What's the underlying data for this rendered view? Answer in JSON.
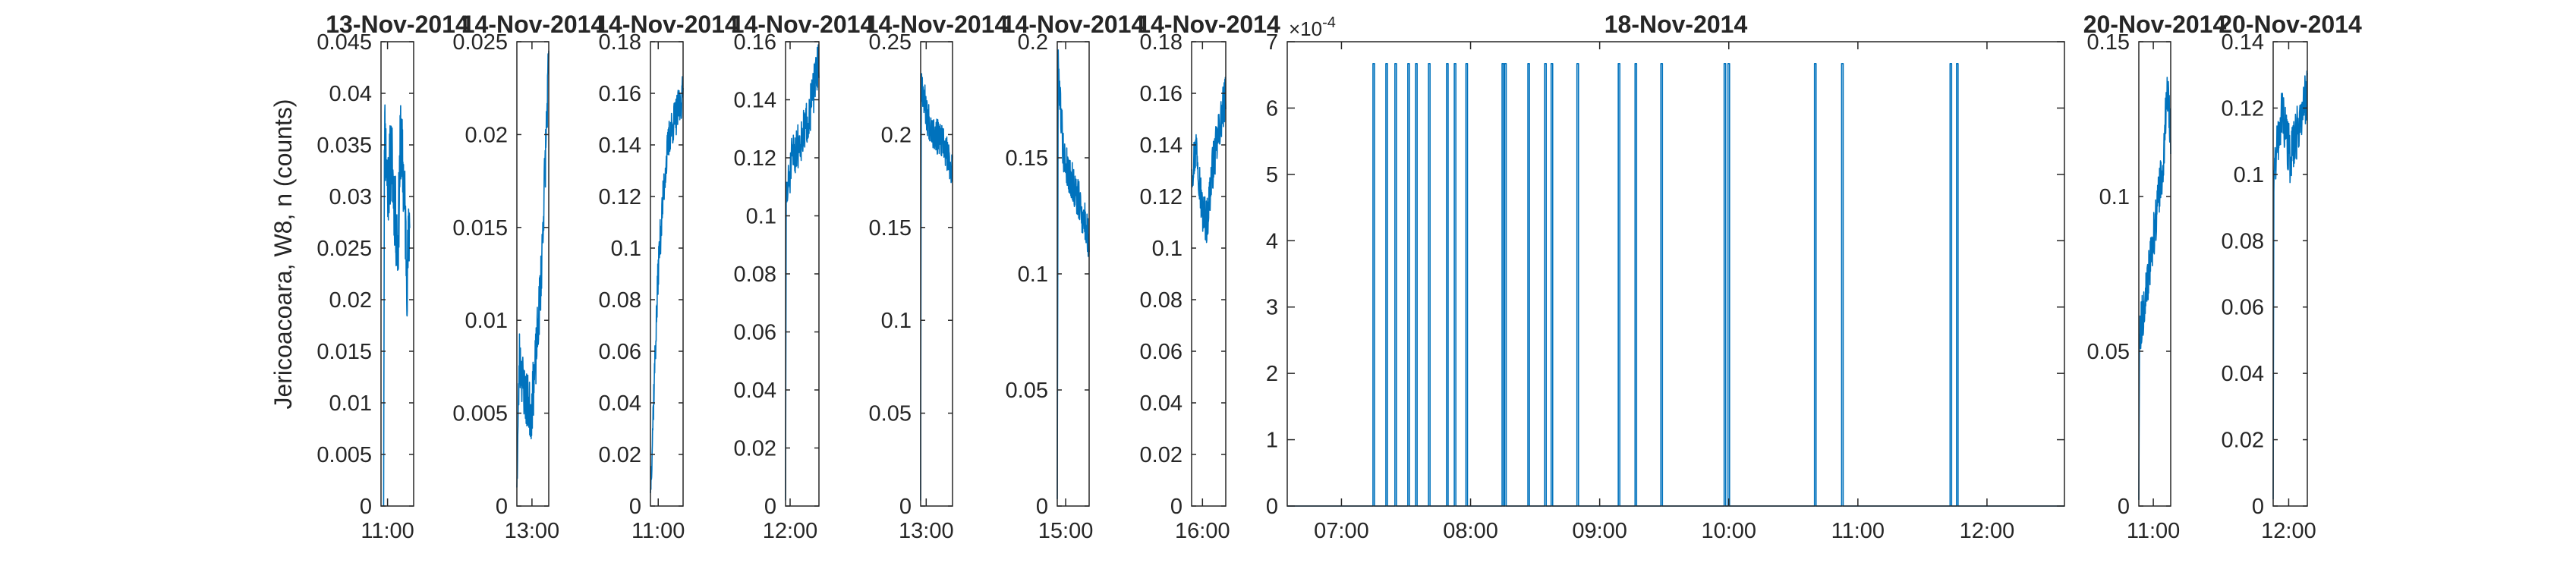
{
  "chart_data": {
    "type": "line",
    "ylabel": "Jericoacoara, W8, n (counts)",
    "line_color": "#0072BD",
    "axes_color": "#262626",
    "panels": [
      {
        "title": "13-Nov-2014",
        "ylim": [
          0,
          0.045
        ],
        "yticks": [
          "0",
          "0.005",
          "0.01",
          "0.015",
          "0.02",
          "0.025",
          "0.03",
          "0.035",
          "0.04",
          "0.045"
        ],
        "xlim": [
          10.95,
          11.2
        ],
        "xticks": [
          {
            "value": 11.0,
            "label": "11:00"
          }
        ],
        "trace": {
          "t0": 10.97,
          "t1": 11.17,
          "seed": 11,
          "points": [
            [
              0,
              0
            ],
            [
              0.03,
              0.037
            ],
            [
              0.15,
              0.031
            ],
            [
              0.3,
              0.034
            ],
            [
              0.45,
              0.028
            ],
            [
              0.55,
              0.025
            ],
            [
              0.65,
              0.036
            ],
            [
              0.8,
              0.03
            ],
            [
              0.9,
              0.022
            ],
            [
              1,
              0.028
            ]
          ],
          "noise": 0.0042
        }
      },
      {
        "title": "14-Nov-2014",
        "ylim": [
          0,
          0.025
        ],
        "yticks": [
          "0",
          "0.005",
          "0.01",
          "0.015",
          "0.02",
          "0.025"
        ],
        "xlim": [
          12.55,
          13.5
        ],
        "xticks": [
          {
            "value": 13.0,
            "label": "13:00"
          }
        ],
        "trace": {
          "t0": 12.55,
          "t1": 13.5,
          "seed": 23,
          "points": [
            [
              0,
              0.001
            ],
            [
              0.08,
              0.008
            ],
            [
              0.25,
              0.006
            ],
            [
              0.45,
              0.005
            ],
            [
              0.6,
              0.008
            ],
            [
              0.75,
              0.012
            ],
            [
              0.88,
              0.018
            ],
            [
              1,
              0.024
            ]
          ],
          "noise": 0.0016
        }
      },
      {
        "title": "14-Nov-2014",
        "ylim": [
          0,
          0.18
        ],
        "yticks": [
          "0",
          "0.02",
          "0.04",
          "0.06",
          "0.08",
          "0.1",
          "0.12",
          "0.14",
          "0.16",
          "0.18"
        ],
        "xlim": [
          10.75,
          11.8
        ],
        "xticks": [
          {
            "value": 11.0,
            "label": "11:00"
          }
        ],
        "trace": {
          "t0": 10.75,
          "t1": 11.8,
          "seed": 37,
          "points": [
            [
              0,
              0.005
            ],
            [
              0.12,
              0.05
            ],
            [
              0.25,
              0.095
            ],
            [
              0.45,
              0.13
            ],
            [
              0.6,
              0.145
            ],
            [
              0.75,
              0.15
            ],
            [
              0.9,
              0.155
            ],
            [
              1,
              0.16
            ]
          ],
          "noise": 0.008
        }
      },
      {
        "title": "14-Nov-2014",
        "ylim": [
          0,
          0.16
        ],
        "yticks": [
          "0",
          "0.02",
          "0.04",
          "0.06",
          "0.08",
          "0.1",
          "0.12",
          "0.14",
          "0.16"
        ],
        "xlim": [
          11.85,
          12.95
        ],
        "xticks": [
          {
            "value": 12.0,
            "label": "12:00"
          }
        ],
        "trace": {
          "t0": 11.85,
          "t1": 12.95,
          "seed": 51,
          "points": [
            [
              0,
              0.002
            ],
            [
              0.02,
              0.105
            ],
            [
              0.2,
              0.12
            ],
            [
              0.4,
              0.125
            ],
            [
              0.6,
              0.13
            ],
            [
              0.8,
              0.14
            ],
            [
              1,
              0.155
            ]
          ],
          "noise": 0.008
        }
      },
      {
        "title": "14-Nov-2014",
        "ylim": [
          0,
          0.25
        ],
        "yticks": [
          "0",
          "0.05",
          "0.1",
          "0.15",
          "0.2",
          "0.25"
        ],
        "xlim": [
          12.8,
          13.95
        ],
        "xticks": [
          {
            "value": 13.0,
            "label": "13:00"
          }
        ],
        "trace": {
          "t0": 12.8,
          "t1": 13.95,
          "seed": 67,
          "points": [
            [
              0,
              0.003
            ],
            [
              0.02,
              0.23
            ],
            [
              0.2,
              0.21
            ],
            [
              0.45,
              0.2
            ],
            [
              0.7,
              0.195
            ],
            [
              1,
              0.18
            ]
          ],
          "noise": 0.01
        }
      },
      {
        "title": "14-Nov-2014",
        "ylim": [
          0,
          0.2
        ],
        "yticks": [
          "0",
          "0.05",
          "0.1",
          "0.15",
          "0.2"
        ],
        "xlim": [
          14.75,
          15.7
        ],
        "xticks": [
          {
            "value": 15.0,
            "label": "15:00"
          }
        ],
        "trace": {
          "t0": 14.75,
          "t1": 15.7,
          "seed": 79,
          "points": [
            [
              0,
              0.003
            ],
            [
              0.03,
              0.19
            ],
            [
              0.2,
              0.15
            ],
            [
              0.45,
              0.14
            ],
            [
              0.7,
              0.13
            ],
            [
              1,
              0.115
            ]
          ],
          "noise": 0.009
        }
      },
      {
        "title": "14-Nov-2014",
        "ylim": [
          0,
          0.18
        ],
        "yticks": [
          "0",
          "0.02",
          "0.04",
          "0.06",
          "0.08",
          "0.1",
          "0.12",
          "0.14",
          "0.16",
          "0.18"
        ],
        "xlim": [
          15.65,
          16.75
        ],
        "xticks": [
          {
            "value": 16.0,
            "label": "16:00"
          }
        ],
        "trace": {
          "t0": 15.65,
          "t1": 16.75,
          "seed": 97,
          "points": [
            [
              0,
              0.13
            ],
            [
              0.15,
              0.14
            ],
            [
              0.3,
              0.115
            ],
            [
              0.45,
              0.11
            ],
            [
              0.6,
              0.13
            ],
            [
              0.8,
              0.145
            ],
            [
              1,
              0.16
            ]
          ],
          "noise": 0.009
        }
      },
      {
        "title": "18-Nov-2014",
        "ylim": [
          0,
          0.0007
        ],
        "yticks": [
          "0",
          "1",
          "2",
          "3",
          "4",
          "5",
          "6",
          "7"
        ],
        "ytick_multiplier": "×10",
        "ytick_exponent": "-4",
        "xlim": [
          6.58,
          12.6
        ],
        "xticks": [
          {
            "value": 7.0,
            "label": "07:00"
          },
          {
            "value": 8.0,
            "label": "08:00"
          },
          {
            "value": 9.0,
            "label": "09:00"
          },
          {
            "value": 10.0,
            "label": "10:00"
          },
          {
            "value": 11.0,
            "label": "11:00"
          },
          {
            "value": 12.0,
            "label": "12:00"
          }
        ],
        "spikes": {
          "height": 0.000667,
          "times": [
            7.25,
            7.35,
            7.42,
            7.52,
            7.58,
            7.68,
            7.82,
            7.88,
            7.97,
            8.25,
            8.27,
            8.45,
            8.58,
            8.63,
            8.83,
            9.15,
            9.28,
            9.48,
            9.97,
            10.0,
            10.67,
            10.88,
            11.72,
            11.77
          ]
        }
      },
      {
        "title": "20-Nov-2014",
        "ylim": [
          0,
          0.15
        ],
        "yticks": [
          "0",
          "0.05",
          "0.1",
          "0.15"
        ],
        "xlim": [
          10.75,
          11.3
        ],
        "xticks": [
          {
            "value": 11.0,
            "label": "11:00"
          }
        ],
        "trace": {
          "t0": 10.75,
          "t1": 11.3,
          "seed": 113,
          "points": [
            [
              0,
              0.002
            ],
            [
              0.02,
              0.055
            ],
            [
              0.25,
              0.07
            ],
            [
              0.5,
              0.09
            ],
            [
              0.75,
              0.11
            ],
            [
              0.9,
              0.135
            ],
            [
              1,
              0.12
            ]
          ],
          "noise": 0.0075
        }
      },
      {
        "title": "20-Nov-2014",
        "ylim": [
          0,
          0.14
        ],
        "yticks": [
          "0",
          "0.02",
          "0.04",
          "0.06",
          "0.08",
          "0.1",
          "0.12",
          "0.14"
        ],
        "xlim": [
          11.75,
          12.3
        ],
        "xticks": [
          {
            "value": 12.0,
            "label": "12:00"
          }
        ],
        "trace": {
          "t0": 11.75,
          "t1": 12.3,
          "seed": 131,
          "points": [
            [
              0,
              0.002
            ],
            [
              0.02,
              0.1
            ],
            [
              0.25,
              0.12
            ],
            [
              0.5,
              0.105
            ],
            [
              0.75,
              0.115
            ],
            [
              1,
              0.125
            ]
          ],
          "noise": 0.008
        }
      }
    ]
  }
}
